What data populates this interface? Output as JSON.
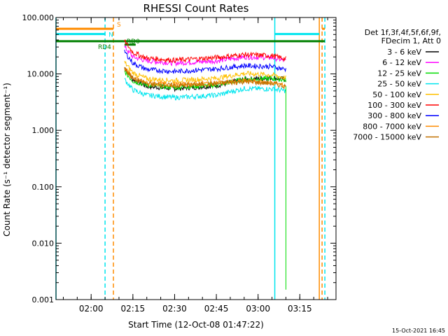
{
  "chart_data": {
    "type": "line",
    "title": "RHESSI Count Rates",
    "xlabel": "Start Time (12-Oct-08 01:47:22)",
    "ylabel": "Count Rate (s⁻¹ detector segment⁻¹)",
    "y_scale": "log",
    "ylim": [
      0.001,
      100
    ],
    "xlim": [
      "01:47:22",
      "03:28:00"
    ],
    "x_ticks": [
      "02:00",
      "02:15",
      "02:30",
      "02:45",
      "03:00",
      "03:15"
    ],
    "y_ticks": [
      "0.001",
      "0.010",
      "0.100",
      "1.000",
      "10.000",
      "100.000"
    ],
    "legend_position": "right",
    "legend_header": [
      "Det 1f,3f,4f,5f,6f,9f,",
      "FDecim 1, Att 0"
    ],
    "colors": {
      "axes": "#000000",
      "attenuator": "#ff8c00",
      "eclipse": "#00e5ee",
      "decimation": "#008000"
    },
    "series": [
      {
        "name": "3 - 6 keV",
        "color": "#000000",
        "x": [
          "02:12",
          "02:15",
          "02:20",
          "02:30",
          "02:45",
          "02:55",
          "03:05",
          "03:10"
        ],
        "y": [
          13,
          8,
          6,
          5.5,
          6.2,
          8,
          8.5,
          8
        ]
      },
      {
        "name": "6 - 12 keV",
        "color": "#ff00ff",
        "x": [
          "02:12",
          "02:15",
          "02:20",
          "02:30",
          "02:45",
          "02:55",
          "03:05",
          "03:10"
        ],
        "y": [
          30,
          20,
          17,
          15.5,
          17,
          20,
          19.5,
          17
        ]
      },
      {
        "name": "12 - 25 keV",
        "color": "#00dd00",
        "x": [
          "02:12",
          "02:15",
          "02:20",
          "02:30",
          "02:45",
          "02:55",
          "03:05",
          "03:10"
        ],
        "y": [
          11,
          7.5,
          6.3,
          5.8,
          6.3,
          8,
          8.3,
          7.8
        ]
      },
      {
        "name": "25 - 50 keV",
        "color": "#00e5ee",
        "x": [
          "02:12",
          "02:15",
          "02:20",
          "02:30",
          "02:45",
          "02:55",
          "03:05",
          "03:10"
        ],
        "y": [
          8,
          5.2,
          4.2,
          3.8,
          4.2,
          5.5,
          5.4,
          5
        ]
      },
      {
        "name": "50 - 100 keV",
        "color": "#ffc000",
        "x": [
          "02:12",
          "02:15",
          "02:20",
          "02:30",
          "02:45",
          "02:55",
          "03:05",
          "03:10"
        ],
        "y": [
          16,
          10.5,
          8.2,
          7.6,
          8.4,
          10.2,
          9.6,
          8.5
        ]
      },
      {
        "name": "100 - 300 keV",
        "color": "#ff0000",
        "x": [
          "02:12",
          "02:15",
          "02:20",
          "02:30",
          "02:45",
          "02:55",
          "03:05",
          "03:10"
        ],
        "y": [
          38,
          24,
          19,
          17.5,
          19.5,
          22,
          21,
          18.5
        ]
      },
      {
        "name": "300 - 800 keV",
        "color": "#0000ff",
        "x": [
          "02:12",
          "02:15",
          "02:20",
          "02:30",
          "02:45",
          "02:55",
          "03:05",
          "03:10"
        ],
        "y": [
          25,
          15.5,
          12,
          11,
          12.3,
          14,
          13.5,
          12
        ]
      },
      {
        "name": "800 - 7000 keV",
        "color": "#ff8c00",
        "x": [
          "02:12",
          "02:15",
          "02:20",
          "02:30",
          "02:45",
          "02:55",
          "03:05",
          "03:10"
        ],
        "y": [
          13,
          8.5,
          6.9,
          6.4,
          6.9,
          7.5,
          7,
          6.2
        ]
      },
      {
        "name": "7000 - 15000 keV",
        "color": "#c07000",
        "x": [
          "02:12",
          "02:15",
          "02:20",
          "02:30",
          "02:45",
          "02:55",
          "03:05",
          "03:10"
        ],
        "y": [
          12.5,
          8.2,
          6.7,
          6.2,
          6.7,
          7.3,
          6.8,
          6
        ]
      }
    ],
    "flag_bars": [
      {
        "label": "S",
        "color": "#ff8c00",
        "x": [
          "01:47:22",
          "02:08"
        ],
        "y": 63
      },
      {
        "label": "S",
        "color": "#ff8c00",
        "x": [
          "03:23",
          "03:24"
        ],
        "y": 63
      },
      {
        "label": "N",
        "color": "#00e5ee",
        "x": [
          "01:47:22",
          "02:05"
        ],
        "y": 51
      },
      {
        "label": "N",
        "color": "#00e5ee",
        "x": [
          "03:06",
          "03:22"
        ],
        "y": 51
      },
      {
        "label": "RD4",
        "color": "#008000",
        "x": [
          "01:47:22",
          "03:24"
        ],
        "y": 38
      },
      {
        "label": "RD0",
        "color": "#008000",
        "x": [
          "02:12",
          "02:16"
        ],
        "y": 33
      }
    ],
    "vertical_lines": [
      {
        "x": "01:47:22",
        "color": "#00e5ee",
        "style": "solid"
      },
      {
        "x": "02:05",
        "color": "#00e5ee",
        "style": "dashed"
      },
      {
        "x": "02:08",
        "color": "#ff8c00",
        "style": "dashed"
      },
      {
        "x": "03:06",
        "color": "#00e5ee",
        "style": "solid"
      },
      {
        "x": "03:22",
        "color": "#ff8c00",
        "style": "solid"
      },
      {
        "x": "03:23",
        "color": "#ff8c00",
        "style": "dashed"
      },
      {
        "x": "03:24",
        "color": "#00e5ee",
        "style": "dashed"
      }
    ],
    "footer_timestamp": "15-Oct-2021 16:45"
  }
}
